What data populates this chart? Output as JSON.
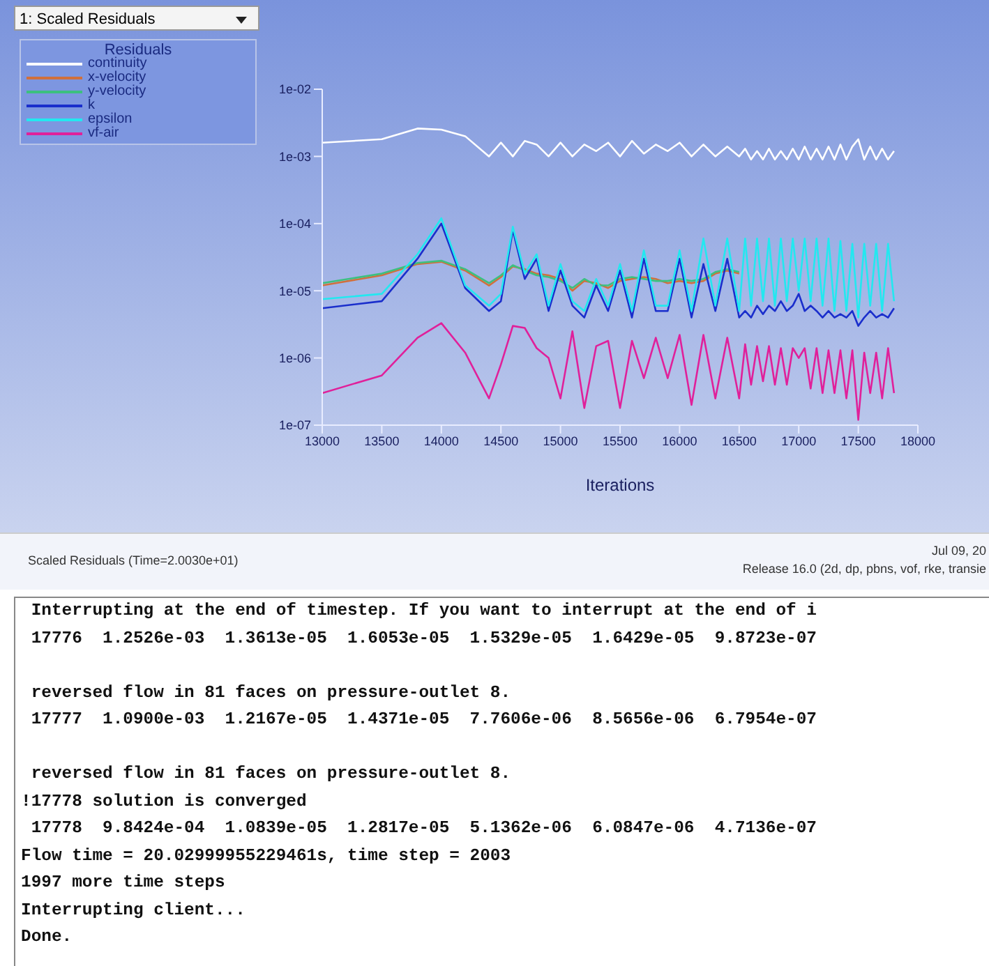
{
  "chart_data": {
    "type": "line",
    "xlabel": "Iterations",
    "legend_title": "Residuals",
    "legend": "top left",
    "log": "y",
    "marker": "none",
    "xlim": [
      13000,
      18000
    ],
    "xticks": [
      13000,
      13500,
      14000,
      14500,
      15000,
      15500,
      16000,
      16500,
      17000,
      17500,
      18000
    ],
    "ylim": [
      1e-07,
      0.01
    ],
    "yticks": [
      {
        "value": 1e-07,
        "label": "1e-07"
      },
      {
        "value": 1e-06,
        "label": "1e-06"
      },
      {
        "value": 1e-05,
        "label": "1e-05"
      },
      {
        "value": 0.0001,
        "label": "1e-04"
      },
      {
        "value": 0.001,
        "label": "1e-03"
      },
      {
        "value": 0.01,
        "label": "1e-02"
      }
    ],
    "x": [
      13000,
      13500,
      13800,
      14000,
      14200,
      14400,
      14500,
      14600,
      14700,
      14800,
      14900,
      15000,
      15100,
      15200,
      15300,
      15400,
      15500,
      15600,
      15700,
      15800,
      15900,
      16000,
      16100,
      16200,
      16300,
      16400,
      16500,
      16550,
      16600,
      16650,
      16700,
      16750,
      16800,
      16850,
      16900,
      16950,
      17000,
      17050,
      17100,
      17150,
      17200,
      17250,
      17300,
      17350,
      17400,
      17450,
      17500,
      17550,
      17600,
      17650,
      17700,
      17750,
      17800
    ],
    "series": [
      {
        "name": "continuity",
        "color": "#ffffff",
        "values": [
          0.0016,
          0.0018,
          0.0026,
          0.0025,
          0.002,
          0.001,
          0.0016,
          0.001,
          0.0017,
          0.0015,
          0.001,
          0.0016,
          0.001,
          0.0015,
          0.0012,
          0.0016,
          0.001,
          0.0017,
          0.0011,
          0.0015,
          0.0012,
          0.0016,
          0.001,
          0.0015,
          0.001,
          0.0014,
          0.001,
          0.0013,
          0.0009,
          0.0012,
          0.0009,
          0.0013,
          0.0009,
          0.0012,
          0.0009,
          0.0013,
          0.0009,
          0.0014,
          0.0009,
          0.0013,
          0.0009,
          0.0014,
          0.0009,
          0.0015,
          0.0009,
          0.0014,
          0.0018,
          0.0009,
          0.0014,
          0.0009,
          0.0013,
          0.0009,
          0.0012
        ]
      },
      {
        "name": "x-velocity",
        "color": "#d0703c",
        "values": [
          1.2e-05,
          1.7e-05,
          2.5e-05,
          2.7e-05,
          2e-05,
          1.2e-05,
          1.6e-05,
          2.3e-05,
          2.1e-05,
          1.8e-05,
          1.7e-05,
          1.5e-05,
          1e-05,
          1.4e-05,
          1.3e-05,
          1.1e-05,
          1.4e-05,
          1.5e-05,
          1.6e-05,
          1.5e-05,
          1.3e-05,
          1.4e-05,
          1.3e-05,
          1.4e-05,
          1.8e-05,
          2e-05,
          1.8e-05,
          null,
          null,
          null,
          null,
          null,
          null,
          null,
          null,
          null,
          null,
          null,
          null,
          null,
          null,
          null,
          null,
          null,
          null,
          null,
          null,
          null,
          null,
          null,
          null,
          null,
          null
        ]
      },
      {
        "name": "y-velocity",
        "color": "#3cc080",
        "values": [
          1.3e-05,
          1.8e-05,
          2.6e-05,
          2.8e-05,
          2.1e-05,
          1.3e-05,
          1.7e-05,
          2.4e-05,
          2e-05,
          1.7e-05,
          1.6e-05,
          1.4e-05,
          1.1e-05,
          1.5e-05,
          1.2e-05,
          1.2e-05,
          1.5e-05,
          1.6e-05,
          1.5e-05,
          1.4e-05,
          1.4e-05,
          1.5e-05,
          1.4e-05,
          1.5e-05,
          1.9e-05,
          2.1e-05,
          1.9e-05,
          null,
          null,
          null,
          null,
          null,
          null,
          null,
          null,
          null,
          null,
          null,
          null,
          null,
          null,
          null,
          null,
          null,
          null,
          null,
          null,
          null,
          null,
          null,
          null,
          null,
          null
        ]
      },
      {
        "name": "k",
        "color": "#1a2ecc",
        "values": [
          5.5e-06,
          7e-06,
          3e-05,
          0.0001,
          1.1e-05,
          5e-06,
          7e-06,
          8e-05,
          1.5e-05,
          3e-05,
          5e-06,
          2e-05,
          6e-06,
          4e-06,
          1.2e-05,
          5e-06,
          2e-05,
          4e-06,
          3e-05,
          5e-06,
          5e-06,
          3e-05,
          4e-06,
          2.5e-05,
          5e-06,
          3e-05,
          4e-06,
          5e-06,
          4e-06,
          6e-06,
          4.5e-06,
          6e-06,
          5e-06,
          7e-06,
          5e-06,
          6e-06,
          9e-06,
          5e-06,
          6e-06,
          5e-06,
          4e-06,
          5e-06,
          4e-06,
          4.5e-06,
          4e-06,
          5e-06,
          3e-06,
          4e-06,
          5e-06,
          4e-06,
          4.5e-06,
          4e-06,
          5.5e-06
        ]
      },
      {
        "name": "epsilon",
        "color": "#22e8f0",
        "values": [
          7.5e-06,
          9e-06,
          3.5e-05,
          0.00012,
          1.2e-05,
          6e-06,
          9e-06,
          9e-05,
          1.8e-05,
          3.5e-05,
          6e-06,
          2.5e-05,
          7e-06,
          5e-06,
          1.5e-05,
          6e-06,
          2.5e-05,
          5e-06,
          4e-05,
          6e-06,
          6e-06,
          4e-05,
          5e-06,
          6e-05,
          6e-06,
          6e-05,
          5e-06,
          6e-05,
          6e-06,
          6e-05,
          7e-06,
          6e-05,
          6e-06,
          6e-05,
          7e-06,
          6e-05,
          1e-05,
          6e-05,
          7e-06,
          6e-05,
          6e-06,
          6e-05,
          5e-06,
          5.5e-05,
          5e-06,
          5e-05,
          4e-06,
          5e-05,
          6e-06,
          5e-05,
          5e-06,
          5e-05,
          7e-06
        ]
      },
      {
        "name": "vf-air",
        "color": "#e0209a",
        "values": [
          3e-07,
          5.5e-07,
          2e-06,
          3.3e-06,
          1.2e-06,
          2.5e-07,
          8e-07,
          3e-06,
          2.8e-06,
          1.4e-06,
          1e-06,
          2.5e-07,
          2.5e-06,
          1.8e-07,
          1.5e-06,
          1.8e-06,
          1.8e-07,
          1.8e-06,
          5e-07,
          2e-06,
          5e-07,
          2.2e-06,
          2e-07,
          2.2e-06,
          2.5e-07,
          2e-06,
          2.5e-07,
          1.6e-06,
          4e-07,
          1.5e-06,
          4.5e-07,
          1.5e-06,
          4e-07,
          1.4e-06,
          4e-07,
          1.4e-06,
          1e-06,
          1.4e-06,
          3.5e-07,
          1.4e-06,
          3e-07,
          1.3e-06,
          3e-07,
          1.3e-06,
          2.5e-07,
          1.3e-06,
          1.2e-07,
          1.2e-06,
          3e-07,
          1.2e-06,
          2.5e-07,
          1.4e-06,
          3e-07
        ]
      }
    ],
    "annotations": [
      "1: Scaled Residuals",
      "Scaled Residuals  (Time=2.0030e+01)",
      "Jul 09, 20",
      "Release 16.0 (2d, dp, pbns, vof, rke, transie",
      " Interrupting at the end of timestep. If you want to interrupt at the end of i",
      " 17776  1.2526e-03  1.3613e-05  1.6053e-05  1.5329e-05  1.6429e-05  9.8723e-07",
      " reversed flow in 81 faces on pressure-outlet 8.",
      " 17777  1.0900e-03  1.2167e-05  1.4371e-05  7.7606e-06  8.5656e-06  6.7954e-07",
      " reversed flow in 81 faces on pressure-outlet 8.",
      "!17778 solution is converged",
      " 17778  9.8424e-04  1.0839e-05  1.2817e-05  5.1362e-06  6.0847e-06  4.7136e-07",
      "Flow time = 20.02999955229461s, time step = 2003",
      "1997 more time steps",
      "Interrupting client...",
      "Done."
    ]
  }
}
